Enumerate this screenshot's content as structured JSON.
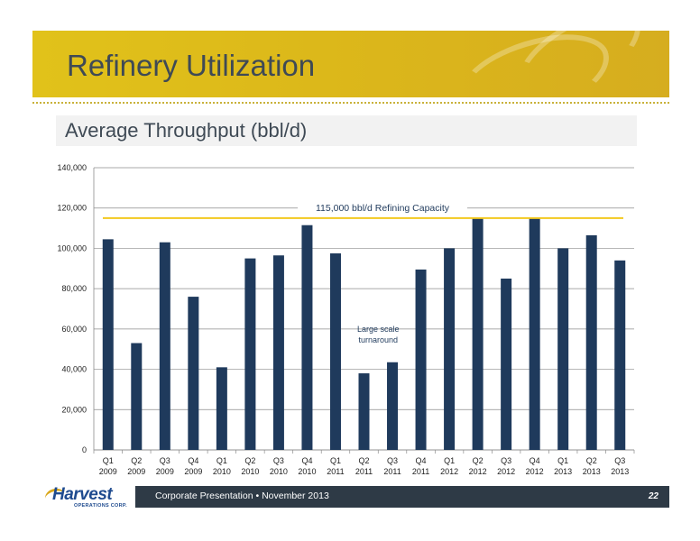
{
  "slide": {
    "title": "Refinery Utilization",
    "subtitle": "Average Throughput (bbl/d)",
    "footer": "Corporate Presentation • November 2013",
    "page_number": "22",
    "logo_word": "Harvest",
    "logo_sub": "OPERATIONS CORP."
  },
  "colors": {
    "banner": "#dcb81a",
    "bar": "#1f3a5c",
    "capacity_line": "#f2c81e",
    "footer_bar": "#2e3a46",
    "title_text": "#3f4a55"
  },
  "chart_data": {
    "type": "bar",
    "categories": [
      [
        "Q1",
        "2009"
      ],
      [
        "Q2",
        "2009"
      ],
      [
        "Q3",
        "2009"
      ],
      [
        "Q4",
        "2009"
      ],
      [
        "Q1",
        "2010"
      ],
      [
        "Q2",
        "2010"
      ],
      [
        "Q3",
        "2010"
      ],
      [
        "Q4",
        "2010"
      ],
      [
        "Q1",
        "2011"
      ],
      [
        "Q2",
        "2011"
      ],
      [
        "Q3",
        "2011"
      ],
      [
        "Q4",
        "2011"
      ],
      [
        "Q1",
        "2012"
      ],
      [
        "Q2",
        "2012"
      ],
      [
        "Q3",
        "2012"
      ],
      [
        "Q4",
        "2012"
      ],
      [
        "Q1",
        "2013"
      ],
      [
        "Q2",
        "2013"
      ],
      [
        "Q3",
        "2013"
      ]
    ],
    "values": [
      104500,
      53000,
      103000,
      76000,
      41000,
      95000,
      96500,
      111500,
      97500,
      38000,
      43500,
      89500,
      100000,
      115000,
      85000,
      115000,
      100000,
      106500,
      94000
    ],
    "ylim": [
      0,
      140000
    ],
    "yticks": [
      "0",
      "20,000",
      "40,000",
      "60,000",
      "80,000",
      "100,000",
      "120,000",
      "140,000"
    ],
    "grid": true,
    "capacity_value": 115000,
    "capacity_label": "115,000 bbl/d Refining Capacity",
    "annotation": [
      "Large scale",
      "turnaround"
    ],
    "annotation_anchor_index": 9
  }
}
